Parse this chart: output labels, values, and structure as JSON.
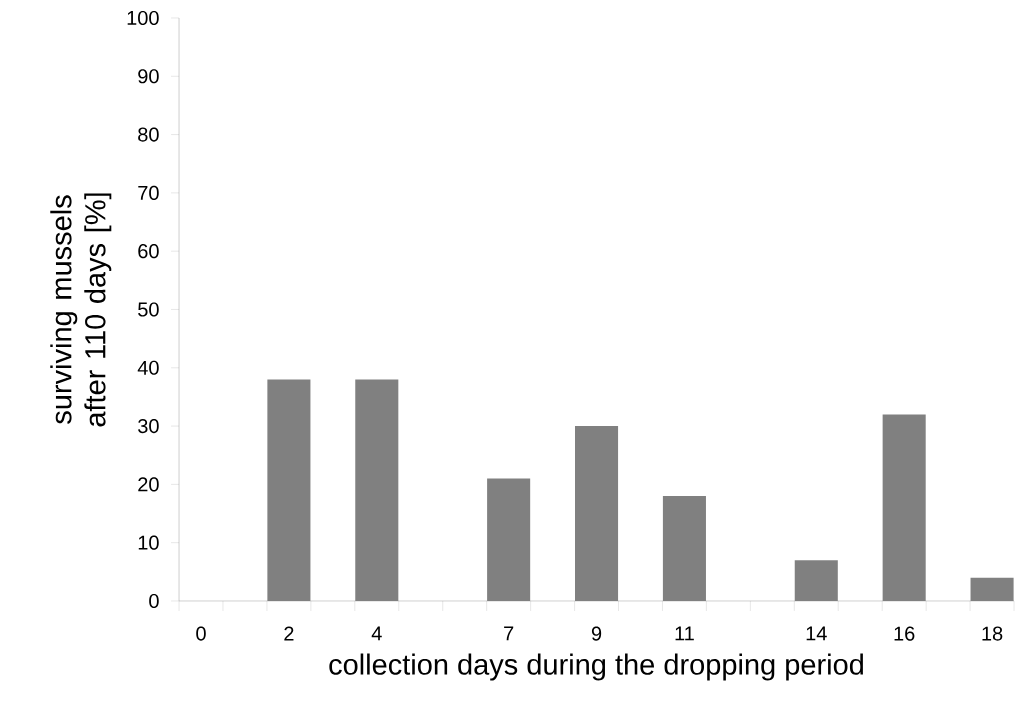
{
  "chart_data": {
    "type": "bar",
    "xlabel": "collection days during the dropping period",
    "ylabel": "surviving mussels after 110 days [%]",
    "categories": [
      "0",
      null,
      "2",
      null,
      "4",
      null,
      null,
      "7",
      null,
      "9",
      null,
      "11",
      null,
      null,
      "14",
      null,
      "16",
      null,
      "18"
    ],
    "values": [
      0,
      null,
      38,
      null,
      38,
      null,
      null,
      21,
      null,
      30,
      null,
      18,
      null,
      null,
      7,
      null,
      32,
      null,
      4
    ],
    "color": "#808080",
    "ylim": [
      0,
      100
    ],
    "yticks": [
      0,
      10,
      20,
      30,
      40,
      50,
      60,
      70,
      80,
      90,
      100
    ]
  }
}
